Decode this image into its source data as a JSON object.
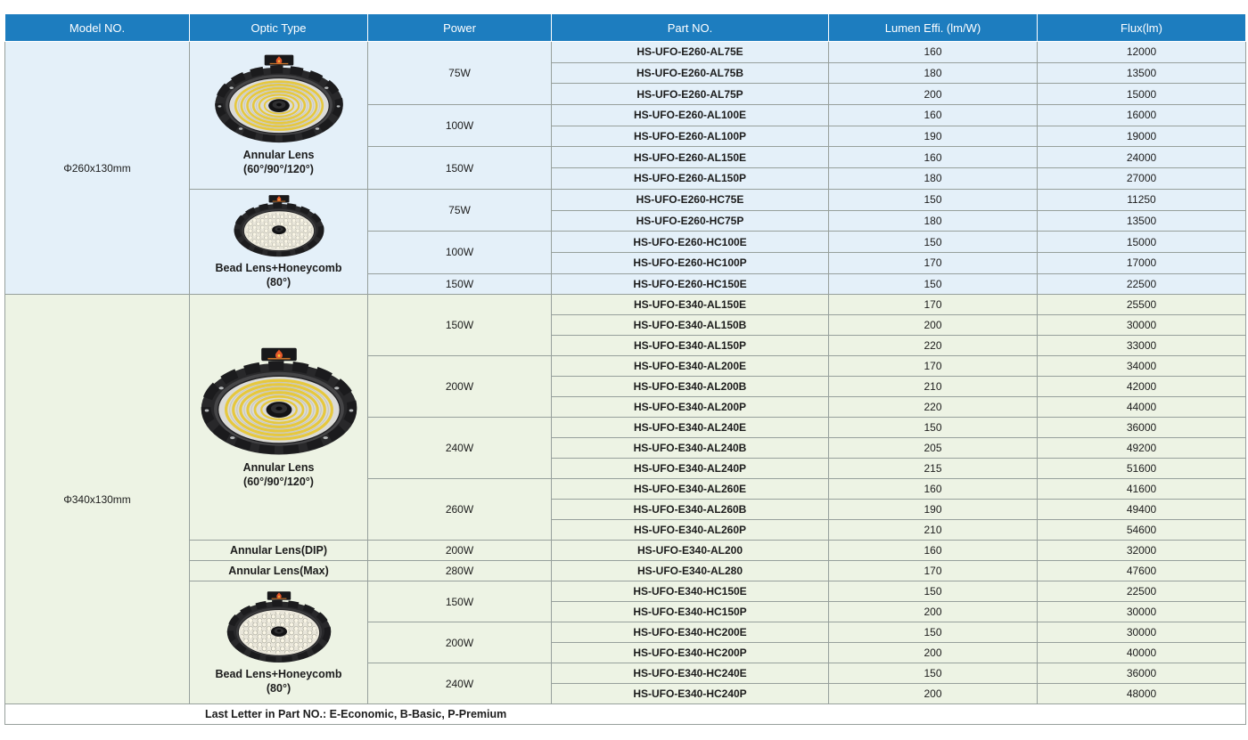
{
  "header": {
    "columns": [
      "Model NO.",
      "Optic Type",
      "Power",
      "Part NO.",
      "Lumen Effi. (lm/W)",
      "Flux(lm)"
    ]
  },
  "colors": {
    "header_bg": "#1d7dbf",
    "header_text": "#ffffff",
    "section1_bg": "#e4f0f9",
    "section2_bg": "#edf3e4",
    "border": "#97a09c",
    "annular_ring": "#e6c83e",
    "badge_red": "#e4572a"
  },
  "sections": [
    {
      "model": "Φ260x130mm",
      "optics": [
        {
          "label": "Annular Lens",
          "sublabel": "(60°/90°/120°)",
          "image": "annular-lens",
          "powers": [
            {
              "power": "75W",
              "parts": [
                {
                  "part": "HS-UFO-E260-AL75E",
                  "lumen": "160",
                  "flux": "12000"
                },
                {
                  "part": "HS-UFO-E260-AL75B",
                  "lumen": "180",
                  "flux": "13500"
                },
                {
                  "part": "HS-UFO-E260-AL75P",
                  "lumen": "200",
                  "flux": "15000"
                }
              ]
            },
            {
              "power": "100W",
              "parts": [
                {
                  "part": "HS-UFO-E260-AL100E",
                  "lumen": "160",
                  "flux": "16000"
                },
                {
                  "part": "HS-UFO-E260-AL100P",
                  "lumen": "190",
                  "flux": "19000"
                }
              ]
            },
            {
              "power": "150W",
              "parts": [
                {
                  "part": "HS-UFO-E260-AL150E",
                  "lumen": "160",
                  "flux": "24000"
                },
                {
                  "part": "HS-UFO-E260-AL150P",
                  "lumen": "180",
                  "flux": "27000"
                }
              ]
            }
          ]
        },
        {
          "label": "Bead Lens+Honeycomb",
          "sublabel": "(80°)",
          "image": "honeycomb-lens",
          "powers": [
            {
              "power": "75W",
              "parts": [
                {
                  "part": "HS-UFO-E260-HC75E",
                  "lumen": "150",
                  "flux": "11250"
                },
                {
                  "part": "HS-UFO-E260-HC75P",
                  "lumen": "180",
                  "flux": "13500"
                }
              ]
            },
            {
              "power": "100W",
              "parts": [
                {
                  "part": "HS-UFO-E260-HC100E",
                  "lumen": "150",
                  "flux": "15000"
                },
                {
                  "part": "HS-UFO-E260-HC100P",
                  "lumen": "170",
                  "flux": "17000"
                }
              ]
            },
            {
              "power": "150W",
              "parts": [
                {
                  "part": "HS-UFO-E260-HC150E",
                  "lumen": "150",
                  "flux": "22500"
                }
              ]
            }
          ]
        }
      ]
    },
    {
      "model": "Φ340x130mm",
      "optics": [
        {
          "label": "Annular Lens",
          "sublabel": "(60°/90°/120°)",
          "image": "annular-lens",
          "powers": [
            {
              "power": "150W",
              "parts": [
                {
                  "part": "HS-UFO-E340-AL150E",
                  "lumen": "170",
                  "flux": "25500"
                },
                {
                  "part": "HS-UFO-E340-AL150B",
                  "lumen": "200",
                  "flux": "30000"
                },
                {
                  "part": "HS-UFO-E340-AL150P",
                  "lumen": "220",
                  "flux": "33000"
                }
              ]
            },
            {
              "power": "200W",
              "parts": [
                {
                  "part": "HS-UFO-E340-AL200E",
                  "lumen": "170",
                  "flux": "34000"
                },
                {
                  "part": "HS-UFO-E340-AL200B",
                  "lumen": "210",
                  "flux": "42000"
                },
                {
                  "part": "HS-UFO-E340-AL200P",
                  "lumen": "220",
                  "flux": "44000"
                }
              ]
            },
            {
              "power": "240W",
              "parts": [
                {
                  "part": "HS-UFO-E340-AL240E",
                  "lumen": "150",
                  "flux": "36000"
                },
                {
                  "part": "HS-UFO-E340-AL240B",
                  "lumen": "205",
                  "flux": "49200"
                },
                {
                  "part": "HS-UFO-E340-AL240P",
                  "lumen": "215",
                  "flux": "51600"
                }
              ]
            },
            {
              "power": "260W",
              "parts": [
                {
                  "part": "HS-UFO-E340-AL260E",
                  "lumen": "160",
                  "flux": "41600"
                },
                {
                  "part": "HS-UFO-E340-AL260B",
                  "lumen": "190",
                  "flux": "49400"
                },
                {
                  "part": "HS-UFO-E340-AL260P",
                  "lumen": "210",
                  "flux": "54600"
                }
              ]
            }
          ]
        },
        {
          "label": "Annular Lens(DIP)",
          "sublabel": "",
          "image": null,
          "powers": [
            {
              "power": "200W",
              "parts": [
                {
                  "part": "HS-UFO-E340-AL200",
                  "lumen": "160",
                  "flux": "32000"
                }
              ]
            }
          ]
        },
        {
          "label": "Annular Lens(Max)",
          "sublabel": "",
          "image": null,
          "powers": [
            {
              "power": "280W",
              "parts": [
                {
                  "part": "HS-UFO-E340-AL280",
                  "lumen": "170",
                  "flux": "47600"
                }
              ]
            }
          ]
        },
        {
          "label": "Bead Lens+Honeycomb",
          "sublabel": "(80°)",
          "image": "honeycomb-lens",
          "powers": [
            {
              "power": "150W",
              "parts": [
                {
                  "part": "HS-UFO-E340-HC150E",
                  "lumen": "150",
                  "flux": "22500"
                },
                {
                  "part": "HS-UFO-E340-HC150P",
                  "lumen": "200",
                  "flux": "30000"
                }
              ]
            },
            {
              "power": "200W",
              "parts": [
                {
                  "part": "HS-UFO-E340-HC200E",
                  "lumen": "150",
                  "flux": "30000"
                },
                {
                  "part": "HS-UFO-E340-HC200P",
                  "lumen": "200",
                  "flux": "40000"
                }
              ]
            },
            {
              "power": "240W",
              "parts": [
                {
                  "part": "HS-UFO-E340-HC240E",
                  "lumen": "150",
                  "flux": "36000"
                },
                {
                  "part": "HS-UFO-E340-HC240P",
                  "lumen": "200",
                  "flux": "48000"
                }
              ]
            }
          ]
        }
      ]
    }
  ],
  "footer": {
    "note": "Last Letter in Part NO.: E-Economic, B-Basic, P-Premium"
  }
}
